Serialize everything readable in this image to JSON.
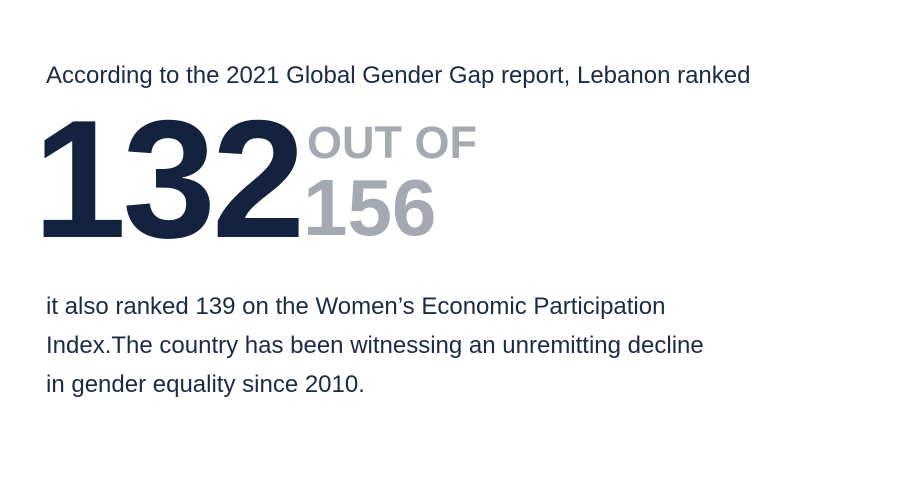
{
  "intro": "According to the 2021 Global Gender Gap report, Lebanon ranked",
  "rank": {
    "value": "132",
    "out_of_label": "OUT OF",
    "total": "156"
  },
  "paragraph": {
    "lines": [
      "it also ranked 139 on the Women’s Economic Participation",
      "Index.The country has been witnessing an unremitting decline",
      "in gender equality since 2010."
    ]
  }
}
